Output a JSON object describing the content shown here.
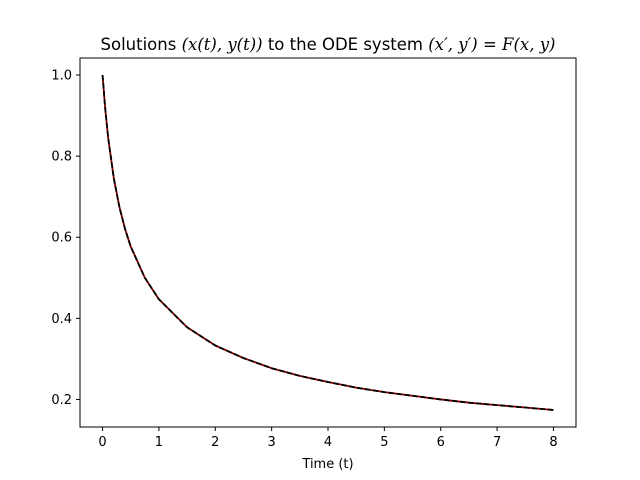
{
  "chart_data": {
    "type": "line",
    "title": {
      "prefix": "Solutions ",
      "math_1": "(x(t), y(t))",
      "middle": " to the ODE system ",
      "math_2": "(x′, y′) = F(x, y)"
    },
    "xlabel": "Time (t)",
    "ylabel": "",
    "xlim": [
      -0.4,
      8.4
    ],
    "ylim": [
      0.132,
      1.042
    ],
    "x_ticks": [
      0,
      1,
      2,
      3,
      4,
      5,
      6,
      7,
      8
    ],
    "y_ticks": [
      0.2,
      0.4,
      0.6,
      0.8,
      1.0
    ],
    "y_tick_labels": [
      "0.2",
      "0.4",
      "0.6",
      "0.8",
      "1.0"
    ],
    "grid": false,
    "series": [
      {
        "color": "#8b0000",
        "style": "solid",
        "x": [
          0,
          0.05,
          0.1,
          0.2,
          0.3,
          0.4,
          0.5,
          0.75,
          1,
          1.5,
          2,
          2.5,
          3,
          3.5,
          4,
          4.5,
          5,
          5.5,
          6,
          6.5,
          7,
          7.5,
          8
        ],
        "values": [
          1.0,
          0.913,
          0.845,
          0.745,
          0.674,
          0.62,
          0.577,
          0.5,
          0.447,
          0.378,
          0.333,
          0.302,
          0.277,
          0.258,
          0.243,
          0.229,
          0.218,
          0.209,
          0.2,
          0.192,
          0.186,
          0.18,
          0.174
        ]
      },
      {
        "color": "#000000",
        "style": "dashed",
        "x": [
          0,
          0.05,
          0.1,
          0.2,
          0.3,
          0.4,
          0.5,
          0.75,
          1,
          1.5,
          2,
          2.5,
          3,
          3.5,
          4,
          4.5,
          5,
          5.5,
          6,
          6.5,
          7,
          7.5,
          8
        ],
        "values": [
          1.0,
          0.913,
          0.845,
          0.745,
          0.674,
          0.62,
          0.577,
          0.5,
          0.447,
          0.378,
          0.333,
          0.302,
          0.277,
          0.258,
          0.243,
          0.229,
          0.218,
          0.209,
          0.2,
          0.192,
          0.186,
          0.18,
          0.174
        ]
      }
    ]
  }
}
